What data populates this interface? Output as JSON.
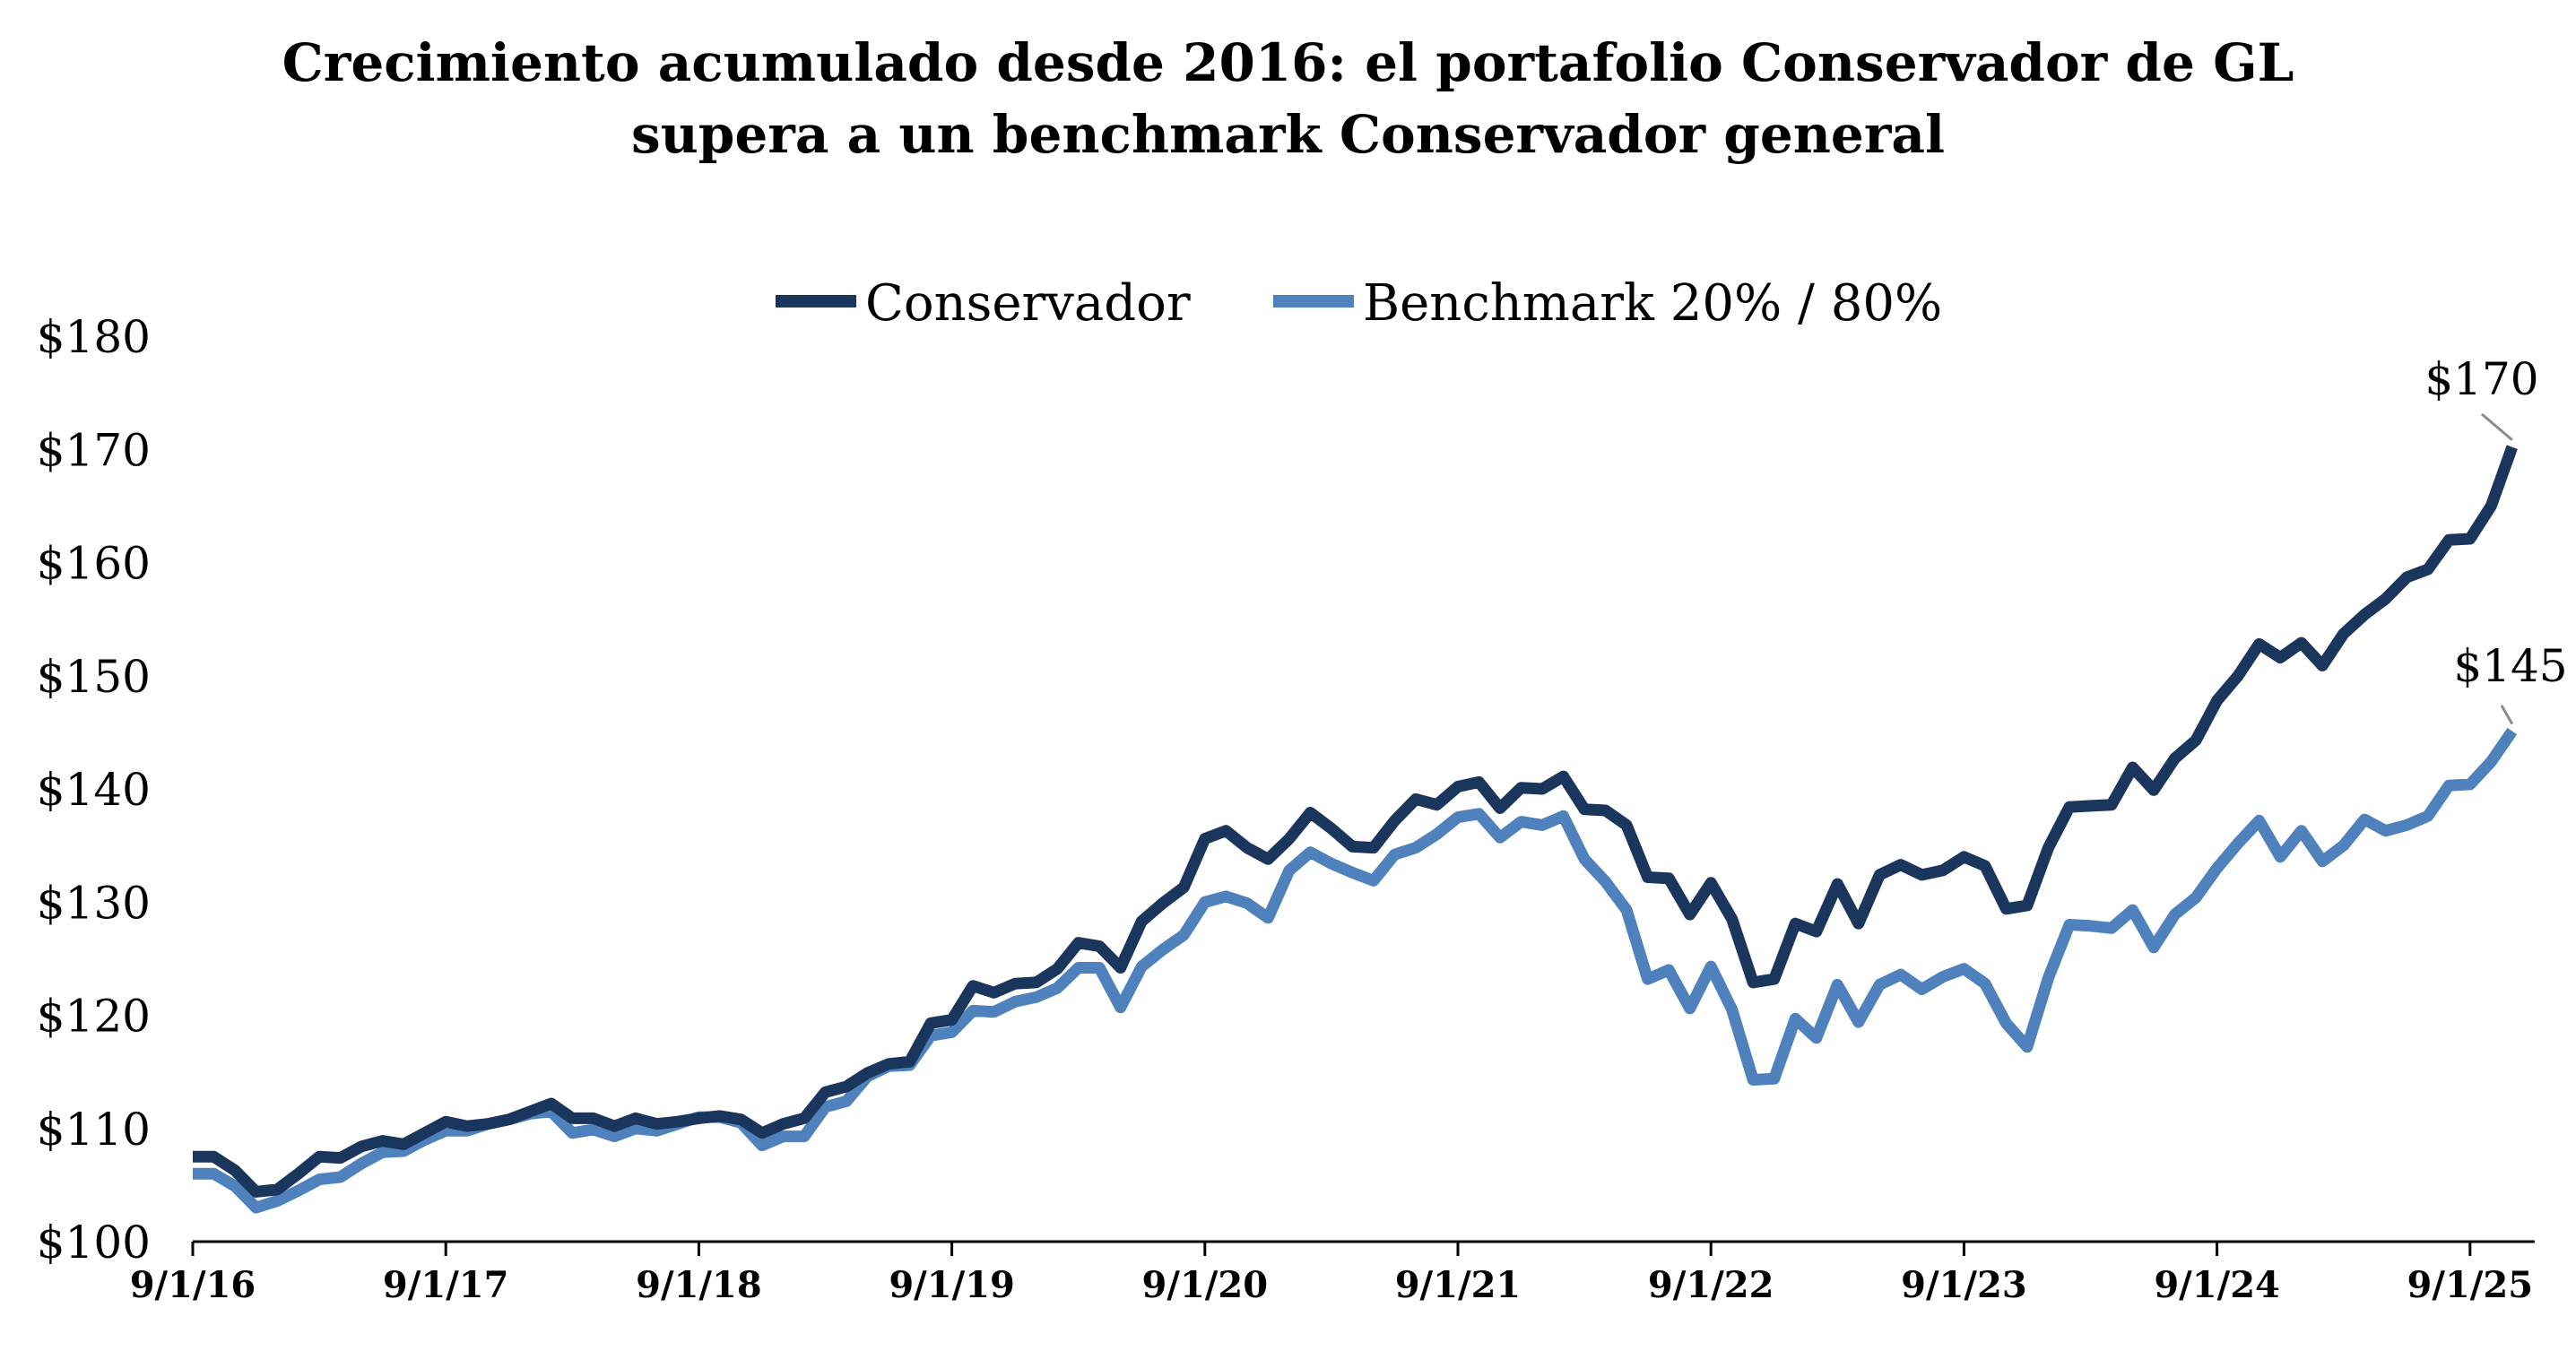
{
  "chart_data": {
    "type": "line",
    "title": "Crecimiento acumulado desde 2016: el portafolio Conservador de GL",
    "subtitle": "supera a un benchmark Conservador general",
    "xlabel": "",
    "ylabel": "",
    "ylim": [
      100,
      180
    ],
    "yticks": [
      100,
      110,
      120,
      130,
      140,
      150,
      160,
      170,
      180
    ],
    "ytick_labels": [
      "$100",
      "$110",
      "$120",
      "$130",
      "$140",
      "$150",
      "$160",
      "$170",
      "$180"
    ],
    "xtick_labels": [
      "9/1/16",
      "9/1/17",
      "9/1/18",
      "9/1/19",
      "9/1/20",
      "9/1/21",
      "9/1/22",
      "9/1/23",
      "9/1/24",
      "9/1/25"
    ],
    "x_start_month": 0,
    "months_per_tick": 12,
    "legend_position": "top-center",
    "grid": false,
    "series": [
      {
        "name": "Conservador",
        "color": "#1b365d",
        "end_label": "$170",
        "values": [
          107.5,
          107.5,
          106.3,
          104.4,
          104.6,
          106.0,
          107.5,
          107.4,
          108.4,
          108.9,
          108.6,
          109.6,
          110.6,
          110.2,
          110.4,
          110.8,
          111.5,
          112.2,
          110.9,
          110.9,
          110.2,
          110.9,
          110.4,
          110.6,
          110.9,
          111.1,
          110.8,
          109.6,
          110.4,
          110.9,
          113.2,
          113.7,
          114.9,
          115.7,
          115.9,
          119.3,
          119.6,
          122.6,
          122.0,
          122.8,
          122.9,
          124.1,
          126.4,
          126.1,
          124.2,
          128.3,
          129.9,
          131.3,
          135.6,
          136.3,
          134.8,
          133.8,
          135.6,
          137.9,
          136.5,
          134.9,
          134.8,
          137.2,
          139.1,
          138.6,
          140.2,
          140.6,
          138.3,
          140.1,
          140.0,
          141.1,
          138.2,
          138.1,
          136.8,
          132.2,
          132.1,
          128.9,
          131.7,
          128.5,
          122.9,
          123.2,
          128.1,
          127.4,
          131.6,
          128.1,
          132.4,
          133.3,
          132.4,
          132.8,
          134.0,
          133.2,
          129.4,
          129.7,
          134.8,
          138.4,
          138.5,
          138.6,
          141.9,
          139.9,
          142.7,
          144.3,
          147.8,
          150.0,
          152.8,
          151.6,
          152.9,
          150.9,
          153.7,
          155.4,
          156.8,
          158.7,
          159.4,
          162.0,
          162.1,
          165.0,
          170.2
        ]
      },
      {
        "name": "Benchmark 20% / 80%",
        "color": "#4f81bd",
        "end_label": "$145",
        "values": [
          106.0,
          106.0,
          104.9,
          103.0,
          103.6,
          104.5,
          105.5,
          105.7,
          106.9,
          107.9,
          108.0,
          109.0,
          109.8,
          109.8,
          110.4,
          110.8,
          111.3,
          111.5,
          109.6,
          109.9,
          109.3,
          110.0,
          109.8,
          110.4,
          111.0,
          111.0,
          110.5,
          108.5,
          109.3,
          109.3,
          111.9,
          112.4,
          114.6,
          115.5,
          115.6,
          118.2,
          118.5,
          120.4,
          120.3,
          121.2,
          121.6,
          122.4,
          124.2,
          124.2,
          120.7,
          124.3,
          125.8,
          127.1,
          130.0,
          130.5,
          129.9,
          128.6,
          132.8,
          134.4,
          133.4,
          132.6,
          131.9,
          134.2,
          134.8,
          136.0,
          137.5,
          137.8,
          135.7,
          137.1,
          136.8,
          137.6,
          133.8,
          131.8,
          129.3,
          123.2,
          124.0,
          120.6,
          124.3,
          120.5,
          114.3,
          114.4,
          119.7,
          118.0,
          122.7,
          119.4,
          122.7,
          123.6,
          122.3,
          123.4,
          124.1,
          122.8,
          119.3,
          117.2,
          123.3,
          128.0,
          127.9,
          127.7,
          129.3,
          126.0,
          128.9,
          130.4,
          133.0,
          135.2,
          137.2,
          134.0,
          136.3,
          133.6,
          135.0,
          137.3,
          136.3,
          136.8,
          137.6,
          140.3,
          140.4,
          142.4,
          145.1
        ]
      }
    ]
  }
}
